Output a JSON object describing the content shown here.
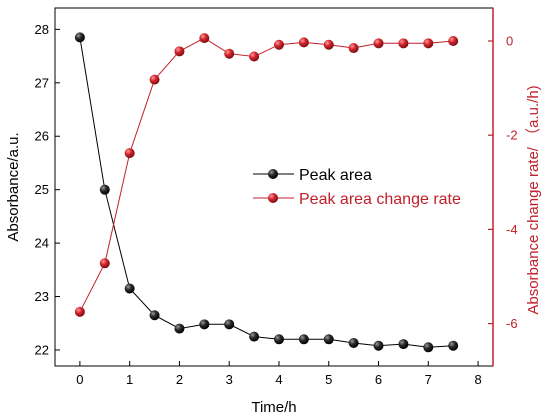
{
  "chart_data": {
    "type": "line",
    "xlabel": "Time/h",
    "ylabel_left": "Absorbance/a.u.",
    "ylabel_right": "Absorbance change rate/ （a.u./h)",
    "x_ticks": [
      "0",
      "1",
      "2",
      "3",
      "4",
      "5",
      "6",
      "7",
      "8"
    ],
    "y_left_ticks": [
      "22",
      "23",
      "24",
      "25",
      "26",
      "27",
      "28"
    ],
    "y_right_ticks": [
      "-6",
      "-4",
      "-2",
      "0"
    ],
    "xlim": [
      -0.5,
      8.3
    ],
    "ylim_left": [
      21.7,
      28.4
    ],
    "ylim_right": [
      -6.9,
      0.7
    ],
    "grid": false,
    "legend_position": "middle-right",
    "colors": {
      "left_axis": "#000000",
      "right_axis": "#c0202a",
      "peak_area": "#000000",
      "change_rate": "#c0202a"
    },
    "series": [
      {
        "name": "Peak area",
        "axis": "left",
        "x": [
          0,
          0.5,
          1,
          1.5,
          2,
          2.5,
          3,
          3.5,
          4,
          4.5,
          5,
          5.5,
          6,
          6.5,
          7,
          7.5
        ],
        "y": [
          27.85,
          25.0,
          23.15,
          22.65,
          22.4,
          22.48,
          22.48,
          22.25,
          22.2,
          22.2,
          22.2,
          22.13,
          22.08,
          22.11,
          22.05,
          22.08
        ]
      },
      {
        "name": "Peak area change rate",
        "axis": "right",
        "x": [
          0,
          0.5,
          1,
          1.5,
          2,
          2.5,
          3,
          3.5,
          4,
          4.5,
          5,
          5.5,
          6,
          6.5,
          7,
          7.5
        ],
        "y": [
          -5.75,
          -4.72,
          -2.38,
          -0.82,
          -0.22,
          0.06,
          -0.27,
          -0.33,
          -0.08,
          -0.03,
          -0.08,
          -0.15,
          -0.05,
          -0.05,
          -0.05,
          0.0
        ]
      }
    ]
  }
}
